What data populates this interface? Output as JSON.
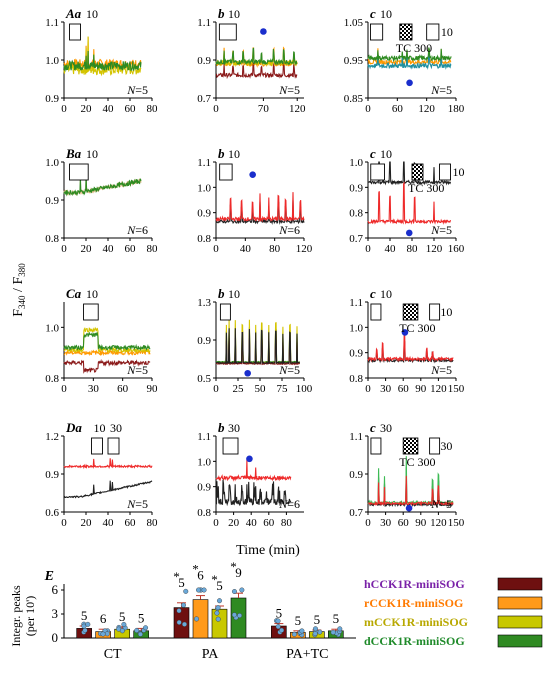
{
  "figure": {
    "y_axis_label": {
      "main": "F",
      "sub1": "340",
      "sep": " / F",
      "sub2": "380"
    },
    "time_axis_label": "Time (min)"
  },
  "chart_data": [
    {
      "type": "line",
      "id": "Aa",
      "panel_label": "Aa",
      "stim_labels": [
        "10"
      ],
      "n_label": "N=5",
      "xlim": [
        0,
        80
      ],
      "ylim": [
        0.9,
        1.1
      ],
      "xticks": [
        "0",
        "20",
        "40",
        "60",
        "80"
      ],
      "yticks": [
        "0.9",
        "1.0",
        "1.1"
      ],
      "stim_boxes": [
        [
          5,
          15
        ]
      ],
      "spikes": [
        [
          20,
          0.06
        ],
        [
          22,
          0.08
        ],
        [
          27,
          0.05
        ]
      ],
      "series": [
        {
          "color": "#ff9900",
          "base": 0.99,
          "noise": 0.012,
          "end": 70
        },
        {
          "color": "#d4c400",
          "base": 0.975,
          "noise": 0.014,
          "end": 70
        },
        {
          "color": "#2e8b22",
          "base": 0.985,
          "noise": 0.012,
          "end": 70
        }
      ]
    },
    {
      "type": "line",
      "id": "Ab",
      "panel_label": "b",
      "stim_labels": [
        "10"
      ],
      "n_label": "N=5",
      "xlim": [
        0,
        130
      ],
      "ylim": [
        0.7,
        1.1
      ],
      "xticks": [
        "0",
        "70",
        "120"
      ],
      "xtick_vals": [
        0,
        70,
        120
      ],
      "yticks": [
        "0.7",
        "0.9",
        "1.1"
      ],
      "stim_boxes": [
        [
          5,
          30
        ]
      ],
      "dot": [
        70,
        1.05
      ],
      "spikes": [
        [
          12,
          0.08
        ],
        [
          25,
          0.06
        ],
        [
          40,
          0.07
        ],
        [
          55,
          0.08
        ],
        [
          67,
          0.05
        ],
        [
          85,
          0.07
        ],
        [
          100,
          0.08
        ],
        [
          115,
          0.06
        ]
      ],
      "series": [
        {
          "color": "#8b1a1a",
          "base": 0.82,
          "noise": 0.01,
          "end": 120
        },
        {
          "color": "#ff9900",
          "base": 0.88,
          "noise": 0.012,
          "end": 120
        },
        {
          "color": "#d4c400",
          "base": 0.885,
          "noise": 0.012,
          "end": 120
        },
        {
          "color": "#2e8b22",
          "base": 0.89,
          "noise": 0.012,
          "end": 120
        }
      ]
    },
    {
      "type": "line",
      "id": "Ac",
      "panel_label": "c",
      "stim_labels": [
        "10",
        "TC 300",
        "10"
      ],
      "n_label": "N=5",
      "xlim": [
        0,
        180
      ],
      "ylim": [
        0.85,
        1.05
      ],
      "xticks": [
        "0",
        "60",
        "120",
        "180"
      ],
      "yticks": [
        "0.85",
        "0.95",
        "1.05"
      ],
      "stim_boxes": [
        [
          5,
          30
        ],
        [
          120,
          145
        ]
      ],
      "tc_box": [
        65,
        90
      ],
      "dot": [
        85,
        0.89
      ],
      "spikes": [
        [
          20,
          0.04
        ],
        [
          70,
          0.03
        ],
        [
          80,
          0.04
        ],
        [
          125,
          0.04
        ],
        [
          150,
          0.035
        ]
      ],
      "series": [
        {
          "color": "#ff9900",
          "base": 0.945,
          "noise": 0.006,
          "end": 170
        },
        {
          "color": "#1f8fa0",
          "base": 0.935,
          "noise": 0.006,
          "end": 170
        },
        {
          "color": "#2e8b22",
          "base": 0.955,
          "noise": 0.006,
          "end": 170
        }
      ]
    },
    {
      "type": "line",
      "id": "Ba",
      "panel_label": "Ba",
      "stim_labels": [
        "10"
      ],
      "n_label": "N=6",
      "xlim": [
        0,
        80
      ],
      "ylim": [
        0.8,
        1.0
      ],
      "xticks": [
        "0",
        "20",
        "40",
        "60",
        "80"
      ],
      "yticks": [
        "0.8",
        "0.9",
        "1.0"
      ],
      "stim_boxes": [
        [
          5,
          22
        ]
      ],
      "spikes": [
        [
          15,
          0.04
        ],
        [
          20,
          0.05
        ]
      ],
      "series": [
        {
          "color": "#e8c090",
          "base": 0.92,
          "noise": 0.006,
          "end": 70,
          "rise": 0.03
        },
        {
          "color": "#2e8b22",
          "base": 0.92,
          "noise": 0.006,
          "end": 70,
          "rise": 0.03
        }
      ]
    },
    {
      "type": "line",
      "id": "Bb",
      "panel_label": "b",
      "stim_labels": [
        "10"
      ],
      "n_label": "N=6",
      "xlim": [
        0,
        120
      ],
      "ylim": [
        0.8,
        1.1
      ],
      "xticks": [
        "0",
        "40",
        "80",
        "120"
      ],
      "yticks": [
        "0.8",
        "0.9",
        "1.0",
        "1.1"
      ],
      "stim_boxes": [
        [
          5,
          22
        ]
      ],
      "dot": [
        50,
        1.05
      ],
      "spikes": [
        [
          20,
          0.08
        ],
        [
          35,
          0.07
        ],
        [
          50,
          0.06
        ],
        [
          60,
          0.1
        ],
        [
          72,
          0.08
        ],
        [
          85,
          0.09
        ],
        [
          95,
          0.08
        ],
        [
          105,
          0.1
        ],
        [
          115,
          0.07
        ]
      ],
      "series": [
        {
          "color": "#222222",
          "base": 0.865,
          "noise": 0.006,
          "end": 120
        },
        {
          "color": "#ee2a2a",
          "base": 0.875,
          "noise": 0.007,
          "end": 120
        }
      ]
    },
    {
      "type": "line",
      "id": "Bc",
      "panel_label": "c",
      "stim_labels": [
        "10",
        "TC 300",
        "10"
      ],
      "n_label": "N=5",
      "xlim": [
        0,
        160
      ],
      "ylim": [
        0.7,
        1.0
      ],
      "xticks": [
        "0",
        "40",
        "80",
        "120",
        "160"
      ],
      "yticks": [
        "0.7",
        "0.8",
        "0.9",
        "1.0"
      ],
      "stim_boxes": [
        [
          5,
          30
        ],
        [
          130,
          150
        ]
      ],
      "tc_box": [
        80,
        100
      ],
      "dot": [
        75,
        0.72
      ],
      "spikes": [
        [
          20,
          0.12
        ],
        [
          40,
          0.1
        ],
        [
          65,
          0.15
        ],
        [
          85,
          0.1
        ],
        [
          120,
          0.08
        ]
      ],
      "series": [
        {
          "color": "#222222",
          "base": 0.92,
          "noise": 0.006,
          "end": 150
        },
        {
          "color": "#ee2a2a",
          "base": 0.765,
          "noise": 0.006,
          "end": 150
        }
      ]
    },
    {
      "type": "line",
      "id": "Ca",
      "panel_label": "Ca",
      "stim_labels": [
        "10"
      ],
      "n_label": "N=5",
      "xlim": [
        0,
        90
      ],
      "ylim": [
        0.8,
        1.1
      ],
      "xticks": [
        "0",
        "30",
        "60",
        "90"
      ],
      "yticks": [
        "0.8",
        "1.0"
      ],
      "stim_boxes": [
        [
          20,
          35
        ]
      ],
      "spikes": [],
      "series": [
        {
          "color": "#8b1a1a",
          "base": 0.86,
          "noise": 0.008,
          "end": 88,
          "bump": [
            20,
            35,
            -0.03
          ]
        },
        {
          "color": "#ff9900",
          "base": 0.9,
          "noise": 0.008,
          "end": 88
        },
        {
          "color": "#d4c400",
          "base": 0.91,
          "noise": 0.008,
          "end": 88,
          "bump": [
            20,
            35,
            0.08
          ]
        },
        {
          "color": "#2e8b22",
          "base": 0.92,
          "noise": 0.008,
          "end": 88,
          "bump": [
            20,
            35,
            0.05
          ]
        }
      ]
    },
    {
      "type": "line",
      "id": "Cb",
      "panel_label": "b",
      "stim_labels": [
        "10"
      ],
      "n_label": "N=5",
      "xlim": [
        0,
        100
      ],
      "ylim": [
        0.5,
        1.3
      ],
      "xticks": [
        "0",
        "25",
        "50",
        "75",
        "100"
      ],
      "yticks": [
        "0.5",
        "0.9",
        "1.3"
      ],
      "stim_boxes": [
        [
          5,
          15
        ]
      ],
      "dot": [
        36,
        0.55
      ],
      "spikes": [
        [
          12,
          0.4
        ],
        [
          15,
          0.45
        ],
        [
          22,
          0.45
        ],
        [
          30,
          0.4
        ],
        [
          38,
          0.45
        ],
        [
          45,
          0.4
        ],
        [
          52,
          0.42
        ],
        [
          60,
          0.4
        ],
        [
          68,
          0.42
        ],
        [
          76,
          0.38
        ],
        [
          84,
          0.4
        ],
        [
          92,
          0.38
        ]
      ],
      "series": [
        {
          "color": "#2e8b22",
          "base": 0.67,
          "noise": 0.005,
          "end": 95
        },
        {
          "color": "#d4c400",
          "base": 0.66,
          "noise": 0.005,
          "end": 95
        },
        {
          "color": "#8b1a1a",
          "base": 0.65,
          "noise": 0.005,
          "end": 95
        },
        {
          "color": "#222222",
          "base": 0.66,
          "noise": 0.005,
          "end": 95
        }
      ]
    },
    {
      "type": "line",
      "id": "Cc",
      "panel_label": "c",
      "stim_labels": [
        "10",
        "TC 300",
        "10"
      ],
      "n_label": "N=5",
      "xlim": [
        0,
        150
      ],
      "ylim": [
        0.8,
        1.1
      ],
      "xticks": [
        "0",
        "30",
        "60",
        "90",
        "120",
        "150"
      ],
      "yticks": [
        "0.8",
        "0.9",
        "1.0",
        "1.1"
      ],
      "stim_boxes": [
        [
          5,
          20
        ],
        [
          105,
          120
        ]
      ],
      "tc_box": [
        60,
        85
      ],
      "dot": [
        63,
        0.98
      ],
      "spikes": [
        [
          15,
          0.04
        ],
        [
          25,
          0.06
        ],
        [
          62,
          0.1
        ],
        [
          100,
          0.04
        ],
        [
          110,
          0.03
        ]
      ],
      "series": [
        {
          "color": "#222222",
          "base": 0.87,
          "noise": 0.006,
          "end": 145
        },
        {
          "color": "#ee2a2a",
          "base": 0.875,
          "noise": 0.006,
          "end": 145
        }
      ]
    },
    {
      "type": "line",
      "id": "Da",
      "panel_label": "Da",
      "stim_labels": [
        "10",
        "30"
      ],
      "n_label": "N=5",
      "xlim": [
        0,
        80
      ],
      "ylim": [
        0.6,
        1.2
      ],
      "xticks": [
        "0",
        "20",
        "40",
        "60",
        "80"
      ],
      "yticks": [
        "0.6",
        "0.9",
        "1.2"
      ],
      "stim_boxes": [
        [
          25,
          35
        ],
        [
          40,
          50
        ]
      ],
      "spikes": [
        [
          27,
          0.07
        ],
        [
          42,
          0.08
        ],
        [
          44,
          0.06
        ]
      ],
      "series": [
        {
          "color": "#ee2a2a",
          "base": 0.96,
          "noise": 0.008,
          "end": 80
        },
        {
          "color": "#222222",
          "base": 0.72,
          "noise": 0.006,
          "end": 80,
          "rise": 0.12
        }
      ]
    },
    {
      "type": "line",
      "id": "Db",
      "panel_label": "b",
      "stim_labels": [
        "30"
      ],
      "n_label": "N=6",
      "xlim": [
        0,
        100
      ],
      "ylim": [
        0.8,
        1.1
      ],
      "xticks": [
        "0",
        "20",
        "40",
        "60",
        "80"
      ],
      "xtick_vals": [
        0,
        20,
        40,
        60,
        80
      ],
      "yticks": [
        "0.8",
        "0.9",
        "1.0",
        "1.1"
      ],
      "stim_boxes": [
        [
          8,
          25
        ]
      ],
      "dot": [
        38,
        1.01
      ],
      "spikes": [
        [
          35,
          0.08
        ],
        [
          45,
          0.06
        ]
      ],
      "series": [
        {
          "color": "#ee2a2a",
          "base": 0.935,
          "noise": 0.008,
          "end": 85
        },
        {
          "color": "#222222",
          "base": 0.84,
          "noise": 0.012,
          "end": 85,
          "osc": 0.08
        }
      ]
    },
    {
      "type": "line",
      "id": "Dc",
      "panel_label": "c",
      "stim_labels": [
        "30",
        "TC 300",
        "30"
      ],
      "n_label": "N=5",
      "xlim": [
        0,
        150
      ],
      "ylim": [
        0.7,
        1.1
      ],
      "xticks": [
        "0",
        "30",
        "60",
        "90",
        "120",
        "150"
      ],
      "yticks": [
        "0.7",
        "0.9",
        "1.1"
      ],
      "stim_boxes": [
        [
          5,
          20
        ],
        [
          105,
          120
        ]
      ],
      "tc_box": [
        60,
        85
      ],
      "dot": [
        70,
        0.72
      ],
      "spikes": [
        [
          18,
          0.18
        ],
        [
          28,
          0.14
        ],
        [
          65,
          0.25
        ],
        [
          110,
          0.12
        ],
        [
          120,
          0.15
        ]
      ],
      "series": [
        {
          "color": "#222222",
          "base": 0.74,
          "noise": 0.006,
          "end": 145
        },
        {
          "color": "#3dbb55",
          "base": 0.75,
          "noise": 0.006,
          "end": 145
        },
        {
          "color": "#ee2a2a",
          "base": 0.745,
          "noise": 0.006,
          "end": 145
        }
      ]
    },
    {
      "type": "bar",
      "id": "E",
      "panel_label": "E",
      "ylabel": [
        "Integr. peaks",
        "(per 10')"
      ],
      "ylim": [
        0,
        6
      ],
      "yticks": [
        "0",
        "3",
        "6"
      ],
      "categories": [
        "CT",
        "PA",
        "PA+TC"
      ],
      "legend_placement": "right",
      "series": [
        {
          "name": "hCCK1R-miniSOG",
          "color": "#6e1010",
          "label_color": "#7a22a8",
          "values": [
            1.2,
            3.8,
            1.5
          ],
          "n": [
            "5",
            "5",
            "5"
          ]
        },
        {
          "name": "rCCK1R-miniSOG",
          "color": "#ff9a1a",
          "label_color": "#ff7a00",
          "values": [
            0.8,
            4.8,
            0.7
          ],
          "n": [
            "6",
            "6",
            "5"
          ]
        },
        {
          "name": "mCCK1R-miniSOG",
          "color": "#c8c800",
          "label_color": "#b8a800",
          "values": [
            1.1,
            3.6,
            0.8
          ],
          "n": [
            "5",
            "5",
            "5"
          ]
        },
        {
          "name": "dCCK1R-miniSOG",
          "color": "#2f8a22",
          "label_color": "#1f8a2a",
          "values": [
            0.9,
            5.0,
            0.9
          ],
          "n": [
            "5",
            "9",
            "5"
          ]
        }
      ],
      "stars": [
        false,
        true,
        false
      ],
      "errors": [
        [
          0.3,
          0.3,
          0.3,
          0.3
        ],
        [
          0.6,
          0.5,
          0.4,
          0.6
        ],
        [
          0.3,
          0.2,
          0.2,
          0.2
        ]
      ]
    }
  ]
}
